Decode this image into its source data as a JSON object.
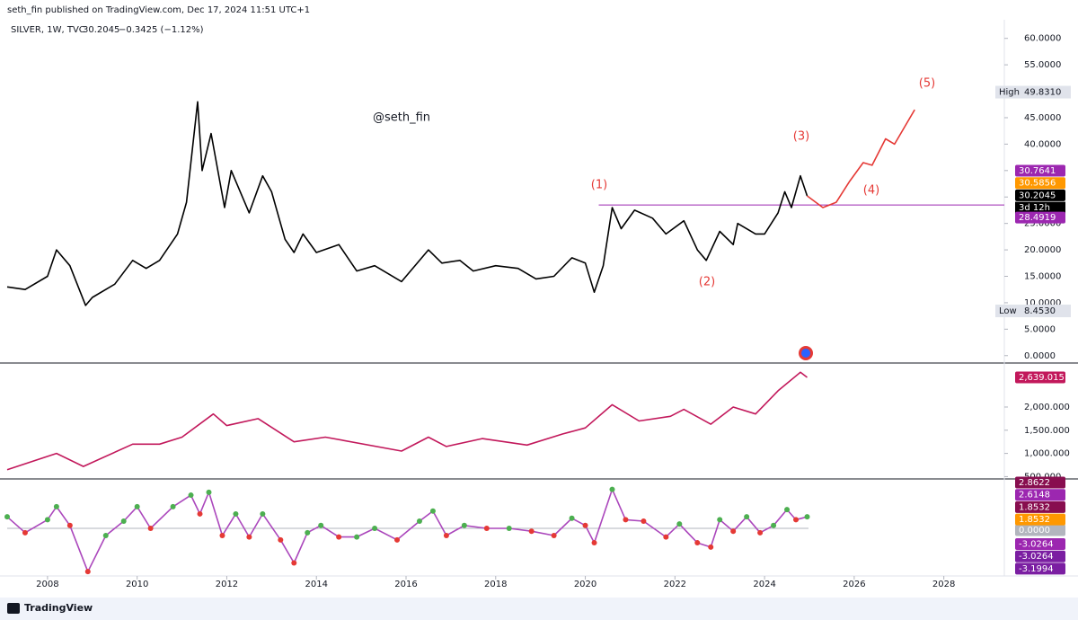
{
  "header": {
    "publisher": "seth_fin published on TradingView.com, Dec 17, 2024 11:51 UTC+1",
    "symbol": "SILVER, 1W, TVC",
    "price": "30.2045",
    "change": "−0.3425 (−1.12%)"
  },
  "footer": {
    "brand": "TradingView"
  },
  "chart_data": [
    {
      "type": "line",
      "xlim": [
        2007.1,
        2029.35
      ],
      "xticks": [
        2008,
        2010,
        2012,
        2014,
        2016,
        2018,
        2020,
        2022,
        2024,
        2026,
        2028
      ],
      "ylim": [
        -1.4,
        62.5
      ],
      "yticks": [
        {
          "value": 0,
          "label": "0.0000"
        },
        {
          "value": 5,
          "label": "5.0000"
        },
        {
          "value": 10,
          "label": "10.0000"
        },
        {
          "value": 15,
          "label": "15.0000"
        },
        {
          "value": 20,
          "label": "20.0000"
        },
        {
          "value": 25,
          "label": "25.0000"
        },
        {
          "value": 30,
          "label": "30.0000"
        },
        {
          "value": 35,
          "label": "35.0000"
        },
        {
          "value": 40,
          "label": "40.0000"
        },
        {
          "value": 45,
          "label": "45.0000"
        },
        {
          "value": 50,
          "label": "50.0000"
        },
        {
          "value": 55,
          "label": "55.0000"
        },
        {
          "value": 60,
          "label": "60.0000"
        }
      ],
      "series": [
        {
          "color": "#000000",
          "x": [
            2007.1,
            2007.5,
            2008.0,
            2008.2,
            2008.5,
            2008.85,
            2009.0,
            2009.5,
            2009.9,
            2010.2,
            2010.5,
            2010.9,
            2011.1,
            2011.35,
            2011.45,
            2011.65,
            2011.95,
            2012.1,
            2012.5,
            2012.8,
            2013.0,
            2013.3,
            2013.5,
            2013.7,
            2014.0,
            2014.5,
            2014.9,
            2015.3,
            2015.9,
            2016.5,
            2016.8,
            2017.2,
            2017.5,
            2018.0,
            2018.5,
            2018.9,
            2019.3,
            2019.7,
            2020.0,
            2020.2,
            2020.4,
            2020.6,
            2020.8,
            2021.1,
            2021.5,
            2021.8,
            2022.2,
            2022.5,
            2022.7,
            2023.0,
            2023.3,
            2023.4,
            2023.8,
            2024.0,
            2024.3,
            2024.45,
            2024.6,
            2024.8,
            2024.95
          ],
          "values": [
            13,
            12.5,
            15,
            20,
            17,
            9.5,
            11,
            13.5,
            18,
            16.5,
            18,
            23,
            29,
            48,
            35,
            42,
            28,
            35,
            27,
            34,
            31,
            22,
            19.5,
            23,
            19.5,
            21,
            16,
            17,
            14,
            20,
            17.5,
            18,
            16,
            17,
            16.5,
            14.5,
            15,
            18.5,
            17.5,
            12,
            17,
            28,
            24,
            27.5,
            26,
            23,
            25.5,
            20,
            18,
            23.5,
            21,
            25,
            23,
            23,
            27,
            31,
            28,
            34,
            30.2045
          ]
        },
        {
          "color": "#e53935",
          "x": [
            2024.95,
            2025.3,
            2025.6,
            2025.9,
            2026.2,
            2026.4,
            2026.7,
            2026.9,
            2027.35
          ],
          "values": [
            30.2045,
            28,
            29,
            33,
            36.5,
            36,
            41,
            40,
            46.5
          ]
        }
      ],
      "hline": {
        "value": 28.4919,
        "x_start": 2020.3,
        "color": "#9c27b0"
      },
      "annotations": [
        {
          "text": "@seth_fin",
          "color": "#131722"
        },
        {
          "text": "(1)",
          "color": "#e53935"
        },
        {
          "text": "(2)",
          "color": "#e53935"
        },
        {
          "text": "(3)",
          "color": "#e53935"
        },
        {
          "text": "(4)",
          "color": "#e53935"
        },
        {
          "text": "(5)",
          "color": "#e53935"
        }
      ],
      "extremes": [
        {
          "text": "High",
          "value": 49.831,
          "label": "49.8310"
        },
        {
          "text": "Low",
          "value": 8.453,
          "label": "8.4530"
        }
      ],
      "tags": [
        {
          "value": 30.7641,
          "label": "30.7641",
          "color": "#9c27b0"
        },
        {
          "value": 30.5856,
          "label": "30.5856",
          "color": "#ff9800"
        },
        {
          "value": 30.2045,
          "label": "30.2045",
          "color": "#000000",
          "countdown": "3d 12h"
        },
        {
          "value": 28.4919,
          "label": "28.4919",
          "color": "#9c27b0"
        }
      ]
    },
    {
      "type": "line",
      "xlim": [
        2007.1,
        2029.35
      ],
      "ylim": [
        450,
        2910
      ],
      "yticks": [
        {
          "value": 500,
          "label": "500.000"
        },
        {
          "value": 1000,
          "label": "1,000.000"
        },
        {
          "value": 1500,
          "label": "1,500.000"
        },
        {
          "value": 2000,
          "label": "2,000.000"
        }
      ],
      "series": [
        {
          "color": "#c2185b",
          "x": [
            2007.1,
            2008.2,
            2008.8,
            2009.9,
            2010.5,
            2011.0,
            2011.7,
            2012.0,
            2012.7,
            2013.5,
            2014.2,
            2015.9,
            2016.5,
            2016.9,
            2017.7,
            2018.7,
            2019.5,
            2020.0,
            2020.6,
            2021.2,
            2021.9,
            2022.2,
            2022.8,
            2023.3,
            2023.8,
            2024.0,
            2024.3,
            2024.8,
            2024.95
          ],
          "values": [
            650,
            1000,
            720,
            1200,
            1200,
            1350,
            1850,
            1600,
            1750,
            1250,
            1350,
            1050,
            1350,
            1150,
            1320,
            1180,
            1420,
            1550,
            2050,
            1700,
            1800,
            1950,
            1630,
            2000,
            1850,
            2050,
            2350,
            2750,
            2639.015
          ]
        }
      ],
      "tags": [
        {
          "value": 2639.015,
          "label": "2,639.015",
          "color": "#c2185b"
        }
      ]
    },
    {
      "type": "line",
      "xlim": [
        2007.1,
        2029.35
      ],
      "ylim": [
        -3.3,
        3.3
      ],
      "yticks": [
        {
          "value": 0,
          "label": "0.0000"
        }
      ],
      "series": [
        {
          "color": "#ab47bc",
          "x": [
            2007.1,
            2007.5,
            2008.0,
            2008.2,
            2008.5,
            2008.9,
            2009.3,
            2009.7,
            2010.0,
            2010.3,
            2010.8,
            2011.2,
            2011.4,
            2011.6,
            2011.9,
            2012.2,
            2012.5,
            2012.8,
            2013.2,
            2013.5,
            2013.8,
            2014.1,
            2014.5,
            2014.9,
            2015.3,
            2015.8,
            2016.3,
            2016.6,
            2016.9,
            2017.3,
            2017.8,
            2018.3,
            2018.8,
            2019.3,
            2019.7,
            2020.0,
            2020.2,
            2020.6,
            2020.9,
            2021.3,
            2021.8,
            2022.1,
            2022.5,
            2022.8,
            2023.0,
            2023.3,
            2023.6,
            2023.9,
            2024.2,
            2024.5,
            2024.7,
            2024.95
          ],
          "values": [
            0.8,
            -0.3,
            0.6,
            1.5,
            0.2,
            -3.0,
            -0.5,
            0.5,
            1.5,
            0,
            1.5,
            2.3,
            1.0,
            2.5,
            -0.5,
            1.0,
            -0.6,
            1.0,
            -0.8,
            -2.4,
            -0.3,
            0.2,
            -0.6,
            -0.6,
            0,
            -0.8,
            0.5,
            1.2,
            -0.5,
            0.2,
            0,
            0,
            -0.2,
            -0.5,
            0.7,
            0.2,
            -1.0,
            2.7,
            0.6,
            0.5,
            -0.6,
            0.3,
            -1.0,
            -1.3,
            0.6,
            -0.2,
            0.8,
            -0.3,
            0.2,
            1.3,
            0.6,
            0.8
          ]
        }
      ],
      "tags": [
        {
          "value": 2.8622,
          "label": "2.8622",
          "color": "#880e4f"
        },
        {
          "value": 2.6148,
          "label": "2.6148",
          "color": "#9c27b0"
        },
        {
          "value": 1.8532,
          "label": "1.8532",
          "color": "#880e4f"
        },
        {
          "value": 1.8532,
          "label": "1.8532",
          "color": "#ff9800"
        },
        {
          "value": -3.0264,
          "label": "-3.0264",
          "color": "#9c27b0"
        },
        {
          "value": -3.0264,
          "label": "-3.0264",
          "color": "#7b1fa2"
        },
        {
          "value": -3.1994,
          "label": "-3.1994",
          "color": "#7b1fa2"
        }
      ]
    }
  ]
}
